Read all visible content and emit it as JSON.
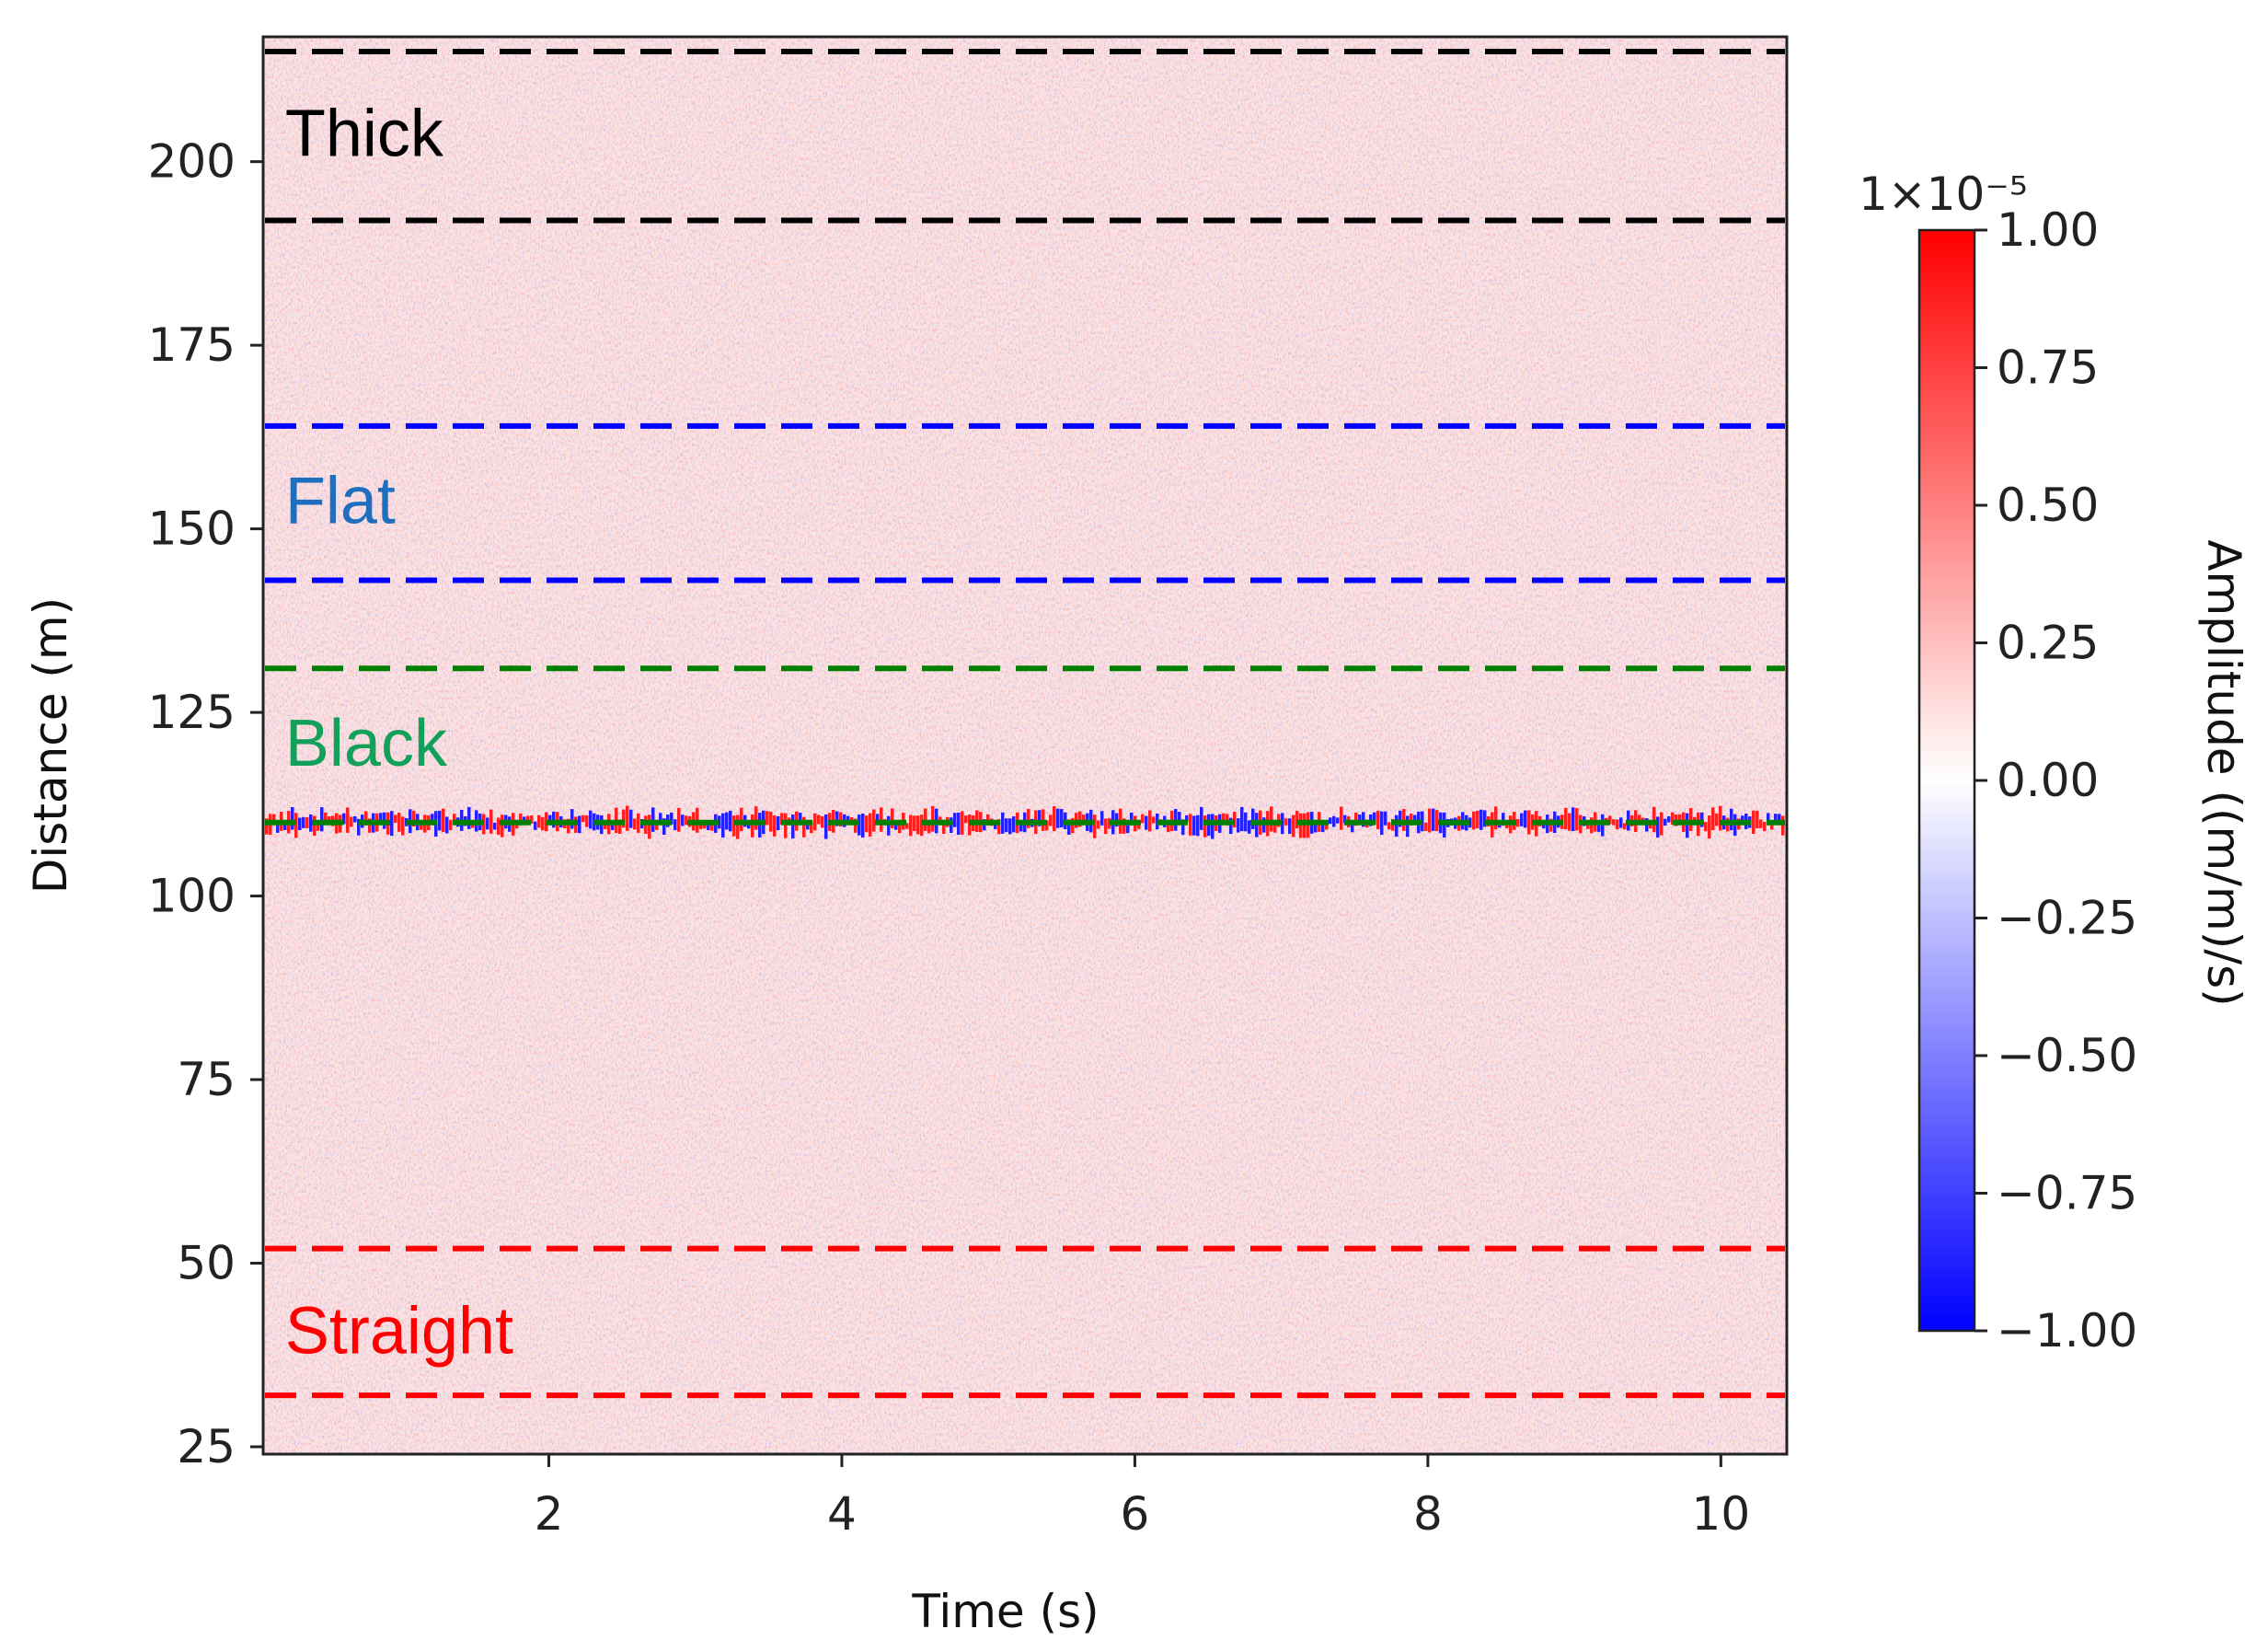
{
  "chart_data": {
    "type": "heatmap",
    "title": "",
    "xlabel": "Time (s)",
    "ylabel": "Distance (m)",
    "xlim": [
      0.05,
      10.45
    ],
    "ylim": [
      24,
      217
    ],
    "x_ticks": [
      {
        "value": 2,
        "label": "2"
      },
      {
        "value": 4,
        "label": "4"
      },
      {
        "value": 6,
        "label": "6"
      },
      {
        "value": 8,
        "label": "8"
      },
      {
        "value": 10,
        "label": "10"
      }
    ],
    "y_ticks": [
      {
        "value": 25,
        "label": "25"
      },
      {
        "value": 50,
        "label": "50"
      },
      {
        "value": 75,
        "label": "75"
      },
      {
        "value": 100,
        "label": "100"
      },
      {
        "value": 125,
        "label": "125"
      },
      {
        "value": 150,
        "label": "150"
      },
      {
        "value": 175,
        "label": "175"
      },
      {
        "value": 200,
        "label": "200"
      }
    ],
    "colorbar": {
      "label": "Amplitude ((m/m)/s)",
      "scale_label": "1×10⁻⁵",
      "range": [
        -1.0,
        1.0
      ],
      "colormap": "bwr",
      "ticks": [
        {
          "value": 1.0,
          "label": "1.00"
        },
        {
          "value": 0.75,
          "label": "0.75"
        },
        {
          "value": 0.5,
          "label": "0.50"
        },
        {
          "value": 0.25,
          "label": "0.25"
        },
        {
          "value": 0.0,
          "label": "0.00"
        },
        {
          "value": -0.25,
          "label": "−0.25"
        },
        {
          "value": -0.5,
          "label": "−0.50"
        },
        {
          "value": -0.75,
          "label": "−0.75"
        },
        {
          "value": -1.0,
          "label": "−1.00"
        }
      ]
    },
    "boundaries": [
      {
        "distance": 215,
        "color": "#000000",
        "group": "thick"
      },
      {
        "distance": 192,
        "color": "#000000",
        "group": "thick"
      },
      {
        "distance": 164,
        "color": "#0000ff",
        "group": "flat"
      },
      {
        "distance": 143,
        "color": "#0000ff",
        "group": "flat"
      },
      {
        "distance": 131,
        "color": "#008000",
        "group": "black"
      },
      {
        "distance": 110,
        "color": "#008000",
        "group": "black"
      },
      {
        "distance": 52,
        "color": "#ff0000",
        "group": "straight"
      },
      {
        "distance": 32,
        "color": "#ff0000",
        "group": "straight"
      }
    ],
    "regions": [
      {
        "label": "Thick",
        "x": 0.2,
        "distance": 204,
        "color": "#000000"
      },
      {
        "label": "Flat",
        "x": 0.2,
        "distance": 154,
        "color": "#1f6fc0"
      },
      {
        "label": "Black",
        "x": 0.2,
        "distance": 121,
        "color": "#13a05a"
      },
      {
        "label": "Straight",
        "x": 0.2,
        "distance": 41,
        "color": "#ff0000"
      }
    ],
    "strong_signal": {
      "distance": 110,
      "description_color_pos": "#ff0000",
      "description_color_neg": "#0000ff"
    }
  }
}
